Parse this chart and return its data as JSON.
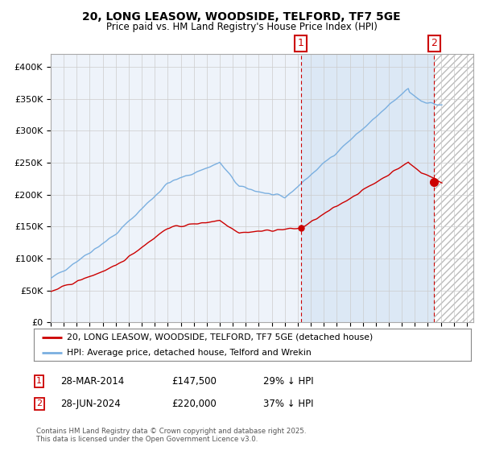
{
  "title": "20, LONG LEASOW, WOODSIDE, TELFORD, TF7 5GE",
  "subtitle": "Price paid vs. HM Land Registry's House Price Index (HPI)",
  "legend_line1": "20, LONG LEASOW, WOODSIDE, TELFORD, TF7 5GE (detached house)",
  "legend_line2": "HPI: Average price, detached house, Telford and Wrekin",
  "ylim": [
    0,
    420000
  ],
  "xlim_start": 1995.0,
  "xlim_end": 2027.5,
  "yticks": [
    0,
    50000,
    100000,
    150000,
    200000,
    250000,
    300000,
    350000,
    400000
  ],
  "ytick_labels": [
    "£0",
    "£50K",
    "£100K",
    "£150K",
    "£200K",
    "£250K",
    "£300K",
    "£350K",
    "£400K"
  ],
  "hpi_color": "#7aafe0",
  "price_color": "#cc0000",
  "marker1_x": 2014.24,
  "marker1_y": 147500,
  "marker2_x": 2024.49,
  "marker2_y": 220000,
  "marker1_label": "1",
  "marker2_label": "2",
  "note1_date": "28-MAR-2014",
  "note1_price": "£147,500",
  "note1_hpi": "29% ↓ HPI",
  "note2_date": "28-JUN-2024",
  "note2_price": "£220,000",
  "note2_hpi": "37% ↓ HPI",
  "footer": "Contains HM Land Registry data © Crown copyright and database right 2025.\nThis data is licensed under the Open Government Licence v3.0.",
  "background_color": "#eef3fa",
  "shade_color": "#dce8f5",
  "hatch_color": "#e8e8e8",
  "grid_color": "#cccccc"
}
